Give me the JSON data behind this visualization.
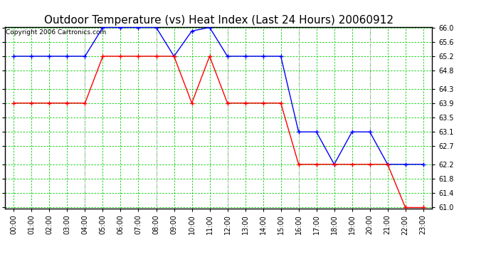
{
  "title": "Outdoor Temperature (vs) Heat Index (Last 24 Hours) 20060912",
  "copyright": "Copyright 2006 Cartronics.com",
  "hours": [
    "00:00",
    "01:00",
    "02:00",
    "03:00",
    "04:00",
    "05:00",
    "06:00",
    "07:00",
    "08:00",
    "09:00",
    "10:00",
    "11:00",
    "12:00",
    "13:00",
    "14:00",
    "15:00",
    "16:00",
    "17:00",
    "18:00",
    "19:00",
    "20:00",
    "21:00",
    "22:00",
    "23:00"
  ],
  "blue_data": [
    65.2,
    65.2,
    65.2,
    65.2,
    65.2,
    66.0,
    66.0,
    66.0,
    66.0,
    65.2,
    65.9,
    66.0,
    65.2,
    65.2,
    65.2,
    65.2,
    63.1,
    63.1,
    62.2,
    63.1,
    63.1,
    62.2,
    62.2,
    62.2
  ],
  "red_data": [
    63.9,
    63.9,
    63.9,
    63.9,
    63.9,
    65.2,
    65.2,
    65.2,
    65.2,
    65.2,
    63.9,
    65.2,
    63.9,
    63.9,
    63.9,
    63.9,
    62.2,
    62.2,
    62.2,
    62.2,
    62.2,
    62.2,
    61.0,
    61.0
  ],
  "blue_color": "#0000FF",
  "red_color": "#FF0000",
  "green_color": "#00CC00",
  "gray_color": "#BBBBBB",
  "ylim_min": 61.0,
  "ylim_max": 66.0,
  "yticks": [
    61.0,
    61.4,
    61.8,
    62.2,
    62.7,
    63.1,
    63.5,
    63.9,
    64.3,
    64.8,
    65.2,
    65.6,
    66.0
  ],
  "bg_color": "#FFFFFF",
  "title_fontsize": 11,
  "copyright_fontsize": 6.5,
  "tick_fontsize": 7,
  "gray_vlines": [
    4,
    8,
    12,
    16,
    20
  ]
}
